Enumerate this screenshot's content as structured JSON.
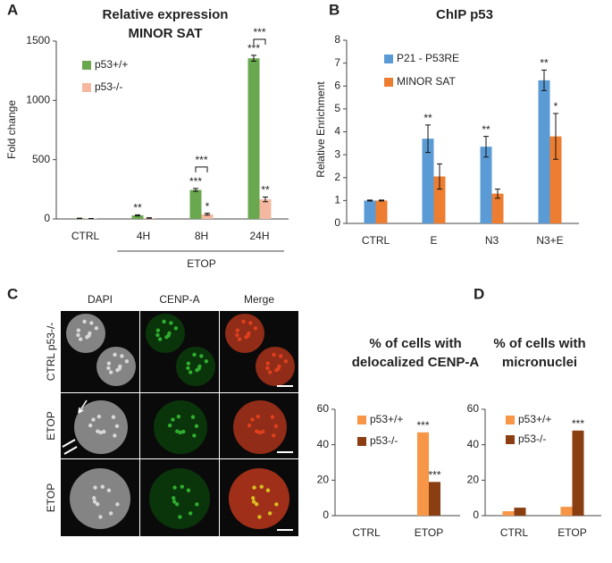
{
  "panel_labels": [
    "A",
    "B",
    "C",
    "D"
  ],
  "microscopy": {
    "columns": [
      "DAPI",
      "CENP-A",
      "Merge"
    ],
    "rows": [
      "CTRL p53-/-",
      "ETOP",
      "ETOP"
    ]
  },
  "chart_data": [
    {
      "type": "bar",
      "title": [
        "Relative expression",
        "MINOR SAT"
      ],
      "y_label": "Fold change",
      "categories": [
        "CTRL",
        "4H",
        "8H",
        "24H"
      ],
      "group_label": "ETOP",
      "series": [
        {
          "name": "p53+/+",
          "color": "#6aa84f",
          "values": [
            5,
            30,
            245,
            1355
          ],
          "errors": [
            2,
            5,
            12,
            25
          ],
          "significance": [
            null,
            "**",
            "***",
            "***"
          ]
        },
        {
          "name": "p53-/-",
          "color": "#f4b8a0",
          "values": [
            3,
            8,
            40,
            165
          ],
          "errors": [
            1,
            2,
            8,
            20
          ],
          "significance": [
            null,
            null,
            "*",
            "**"
          ]
        }
      ],
      "bracket_labels": [
        null,
        null,
        "***",
        "***"
      ],
      "ylim": [
        0,
        1500
      ],
      "yticks": [
        0,
        500,
        1000,
        1500
      ],
      "grid": false
    },
    {
      "type": "bar",
      "title": [
        "ChIP p53"
      ],
      "y_label": "Relative Enrichment",
      "categories": [
        "CTRL",
        "E",
        "N3",
        "N3+E"
      ],
      "series": [
        {
          "name": "P21 - P53RE",
          "color": "#5b9bd5",
          "values": [
            1,
            3.7,
            3.35,
            6.25
          ],
          "errors": [
            0.02,
            0.6,
            0.45,
            0.45
          ],
          "significance": [
            null,
            "**",
            "**",
            "**"
          ]
        },
        {
          "name": "MINOR SAT",
          "color": "#ed7d31",
          "values": [
            1,
            2.05,
            1.3,
            3.8
          ],
          "errors": [
            0.02,
            0.55,
            0.2,
            1.0
          ],
          "significance": [
            null,
            null,
            null,
            "*"
          ]
        }
      ],
      "ylim": [
        0,
        8
      ],
      "yticks": [
        0,
        1,
        2,
        3,
        4,
        5,
        6,
        7,
        8
      ],
      "grid": false
    },
    {
      "type": "bar",
      "title": [
        "% of cells with",
        "delocalized CENP-A"
      ],
      "categories": [
        "CTRL",
        "ETOP"
      ],
      "series": [
        {
          "name": "p53+/+",
          "color": "#f79646",
          "values": [
            0,
            47
          ],
          "significance": [
            null,
            "***"
          ]
        },
        {
          "name": "p53-/-",
          "color": "#8b3e12",
          "values": [
            0,
            19
          ],
          "significance": [
            null,
            "***"
          ]
        }
      ],
      "ylim": [
        0,
        60
      ],
      "yticks": [
        0,
        20,
        40,
        60
      ],
      "grid": false
    },
    {
      "type": "bar",
      "title": [
        "% of cells with",
        "micronuclei"
      ],
      "categories": [
        "CTRL",
        "ETOP"
      ],
      "series": [
        {
          "name": "p53+/+",
          "color": "#f79646",
          "values": [
            2.5,
            5
          ],
          "significance": [
            null,
            null
          ]
        },
        {
          "name": "p53-/-",
          "color": "#8b3e12",
          "values": [
            4.5,
            48
          ],
          "significance": [
            null,
            "***"
          ]
        }
      ],
      "ylim": [
        0,
        60
      ],
      "yticks": [
        0,
        20,
        40,
        60
      ],
      "grid": false
    }
  ]
}
